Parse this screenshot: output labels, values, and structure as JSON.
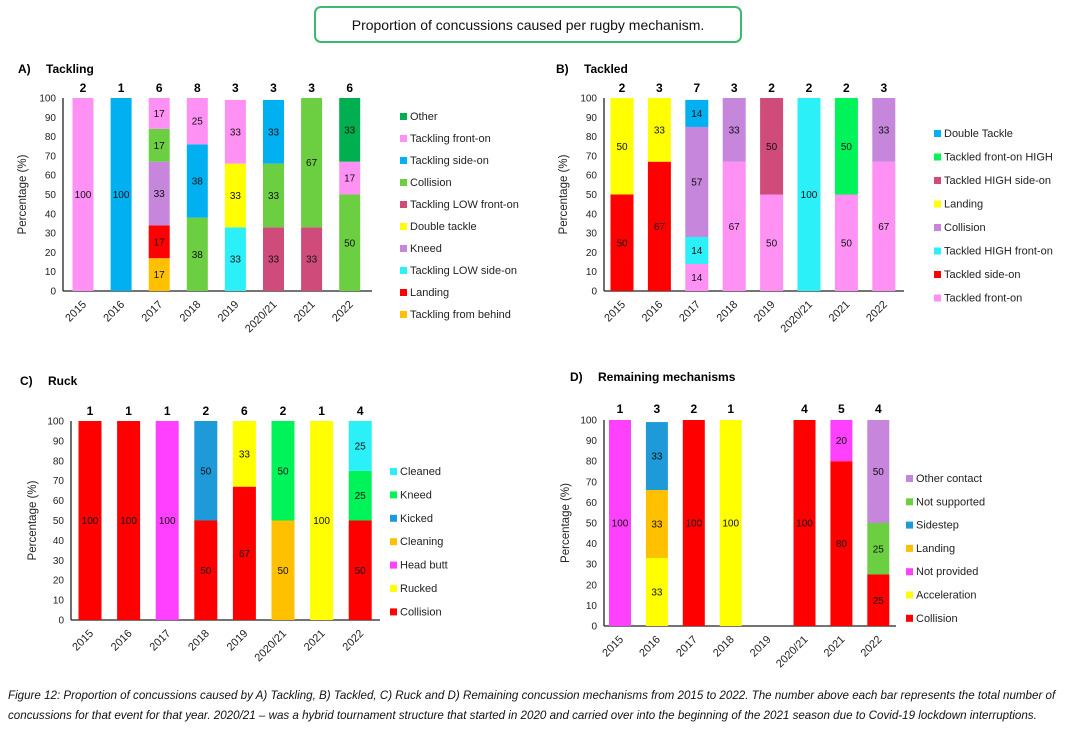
{
  "page_title": "Proportion of concussions caused per rugby mechanism.",
  "caption": "Figure 12: Proportion of concussions caused by A) Tackling, B) Tackled, C) Ruck and D) Remaining concussion mechanisms from 2015 to 2022. The number above each bar represents the total number of concussions for that event for that year. 2020/21 – was a hybrid tournament structure that started in 2020 and carried over into the beginning of the 2021 season due to Covid-19 lockdown interruptions.",
  "chart_data": [
    {
      "id": "A",
      "type": "bar",
      "stacked": true,
      "panel_letter": "A)",
      "title": "Tackling",
      "xlabel": "",
      "ylabel": "Percentage (%)",
      "ylim": [
        0,
        100
      ],
      "yticks": [
        0,
        10,
        20,
        30,
        40,
        50,
        60,
        70,
        80,
        90,
        100
      ],
      "grid": false,
      "legend_position": "right",
      "categories": [
        "2015",
        "2016",
        "2017",
        "2018",
        "2019",
        "2020/21",
        "2021",
        "2022"
      ],
      "totals": [
        "2",
        "1",
        "6",
        "8",
        "3",
        "3",
        "3",
        "6"
      ],
      "series": [
        {
          "name": "Tackling from behind",
          "color": "#ffc000",
          "values": [
            0,
            0,
            17,
            0,
            0,
            0,
            0,
            0
          ]
        },
        {
          "name": "Landing",
          "color": "#ff0000",
          "values": [
            0,
            0,
            17,
            0,
            0,
            0,
            0,
            0
          ]
        },
        {
          "name": "Tackling LOW side-on",
          "color": "#2bf0f8",
          "values": [
            0,
            0,
            0,
            0,
            33,
            0,
            0,
            0
          ]
        },
        {
          "name": "Kneed",
          "color": "#c586dc",
          "values": [
            0,
            0,
            33,
            0,
            0,
            0,
            0,
            0
          ]
        },
        {
          "name": "Double tackle",
          "color": "#ffff00",
          "values": [
            0,
            0,
            0,
            0,
            33,
            0,
            0,
            0
          ]
        },
        {
          "name": "Tackling LOW front-on",
          "color": "#cf4b7a",
          "values": [
            0,
            0,
            0,
            0,
            0,
            33,
            33,
            0
          ]
        },
        {
          "name": "Collision",
          "color": "#6ccf42",
          "values": [
            0,
            0,
            17,
            38,
            0,
            33,
            67,
            50
          ]
        },
        {
          "name": "Tackling side-on",
          "color": "#00b0f0",
          "values": [
            0,
            100,
            0,
            38,
            0,
            33,
            0,
            0
          ]
        },
        {
          "name": "Tackling front-on",
          "color": "#ff91f5",
          "values": [
            100,
            0,
            17,
            25,
            33,
            0,
            0,
            17
          ]
        },
        {
          "name": "Other",
          "color": "#00b050",
          "values": [
            0,
            0,
            0,
            0,
            0,
            0,
            0,
            33
          ]
        }
      ]
    },
    {
      "id": "B",
      "type": "bar",
      "stacked": true,
      "panel_letter": "B)",
      "title": "Tackled",
      "xlabel": "",
      "ylabel": "Percentage (%)",
      "ylim": [
        0,
        100
      ],
      "yticks": [
        0,
        10,
        20,
        30,
        40,
        50,
        60,
        70,
        80,
        90,
        100
      ],
      "grid": false,
      "legend_position": "right",
      "categories": [
        "2015",
        "2016",
        "2017",
        "2018",
        "2019",
        "2020/21",
        "2021",
        "2022"
      ],
      "totals": [
        "2",
        "3",
        "7",
        "3",
        "2",
        "2",
        "2",
        "3"
      ],
      "series": [
        {
          "name": "Tackled front-on",
          "color": "#ff91f5",
          "values": [
            0,
            0,
            14,
            67,
            50,
            0,
            50,
            67
          ]
        },
        {
          "name": "Tackled side-on",
          "color": "#ff0000",
          "values": [
            50,
            67,
            0,
            0,
            0,
            0,
            0,
            0
          ]
        },
        {
          "name": "Tackled HIGH front-on",
          "color": "#2bf0f8",
          "values": [
            0,
            0,
            14,
            0,
            0,
            100,
            0,
            0
          ]
        },
        {
          "name": "Collision",
          "color": "#c586dc",
          "values": [
            0,
            0,
            57,
            33,
            0,
            0,
            0,
            33
          ]
        },
        {
          "name": "Landing",
          "color": "#ffff00",
          "values": [
            50,
            33,
            0,
            0,
            0,
            0,
            0,
            0
          ]
        },
        {
          "name": "Tackled HIGH side-on",
          "color": "#cf4b7a",
          "values": [
            0,
            0,
            0,
            0,
            50,
            0,
            0,
            0
          ]
        },
        {
          "name": "Tackled front-on HIGH",
          "color": "#00f45a",
          "values": [
            0,
            0,
            0,
            0,
            0,
            0,
            50,
            0
          ]
        },
        {
          "name": "Double Tackle",
          "color": "#00b0f0",
          "values": [
            0,
            0,
            14,
            0,
            0,
            0,
            0,
            0
          ]
        }
      ]
    },
    {
      "id": "C",
      "type": "bar",
      "stacked": true,
      "panel_letter": "C)",
      "title": "Ruck",
      "xlabel": "",
      "ylabel": "Percentage (%)",
      "ylim": [
        0,
        100
      ],
      "yticks": [
        0,
        10,
        20,
        30,
        40,
        50,
        60,
        70,
        80,
        90,
        100
      ],
      "grid": false,
      "legend_position": "right",
      "categories": [
        "2015",
        "2016",
        "2017",
        "2018",
        "2019",
        "2020/21",
        "2021",
        "2022"
      ],
      "totals": [
        "1",
        "1",
        "1",
        "2",
        "6",
        "2",
        "1",
        "4"
      ],
      "series": [
        {
          "name": "Collision",
          "color": "#ff0000",
          "values": [
            100,
            100,
            0,
            50,
            67,
            0,
            0,
            50
          ]
        },
        {
          "name": "Rucked",
          "color": "#ffff00",
          "values": [
            0,
            0,
            0,
            0,
            33,
            0,
            100,
            0
          ]
        },
        {
          "name": "Head butt",
          "color": "#ff40ff",
          "values": [
            0,
            0,
            100,
            0,
            0,
            0,
            0,
            0
          ]
        },
        {
          "name": "Cleaning",
          "color": "#ffc000",
          "values": [
            0,
            0,
            0,
            0,
            0,
            50,
            0,
            0
          ]
        },
        {
          "name": "Kicked",
          "color": "#1f9ad8",
          "values": [
            0,
            0,
            0,
            50,
            0,
            0,
            0,
            0
          ]
        },
        {
          "name": "Kneed",
          "color": "#00f45a",
          "values": [
            0,
            0,
            0,
            0,
            0,
            50,
            0,
            25
          ]
        },
        {
          "name": "Cleaned",
          "color": "#2bf0f8",
          "values": [
            0,
            0,
            0,
            0,
            0,
            0,
            0,
            25
          ]
        }
      ]
    },
    {
      "id": "D",
      "type": "bar",
      "stacked": true,
      "panel_letter": "D)",
      "title": "Remaining mechanisms",
      "xlabel": "",
      "ylabel": "Percentage (%)",
      "ylim": [
        0,
        100
      ],
      "yticks": [
        0,
        10,
        20,
        30,
        40,
        50,
        60,
        70,
        80,
        90,
        100
      ],
      "grid": false,
      "legend_position": "right",
      "categories": [
        "2015",
        "2016",
        "2017",
        "2018",
        "2019",
        "2020/21",
        "2021",
        "2022"
      ],
      "totals": [
        "1",
        "3",
        "2",
        "1",
        "",
        "4",
        "5",
        "4"
      ],
      "series": [
        {
          "name": "Collision",
          "color": "#ff0000",
          "values": [
            0,
            0,
            100,
            0,
            0,
            100,
            80,
            25
          ]
        },
        {
          "name": "Acceleration",
          "color": "#ffff00",
          "values": [
            0,
            33,
            0,
            100,
            0,
            0,
            0,
            0
          ]
        },
        {
          "name": "Not provided",
          "color": "#ff40ff",
          "values": [
            100,
            0,
            0,
            0,
            0,
            0,
            20,
            0
          ]
        },
        {
          "name": "Landing",
          "color": "#ffc000",
          "values": [
            0,
            33,
            0,
            0,
            0,
            0,
            0,
            0
          ]
        },
        {
          "name": "Sidestep",
          "color": "#1f9ad8",
          "values": [
            0,
            33,
            0,
            0,
            0,
            0,
            0,
            0
          ]
        },
        {
          "name": "Not supported",
          "color": "#6ccf42",
          "values": [
            0,
            0,
            0,
            0,
            0,
            0,
            0,
            25
          ]
        },
        {
          "name": "Other contact",
          "color": "#c586dc",
          "values": [
            0,
            0,
            0,
            0,
            0,
            0,
            0,
            50
          ]
        }
      ]
    }
  ]
}
